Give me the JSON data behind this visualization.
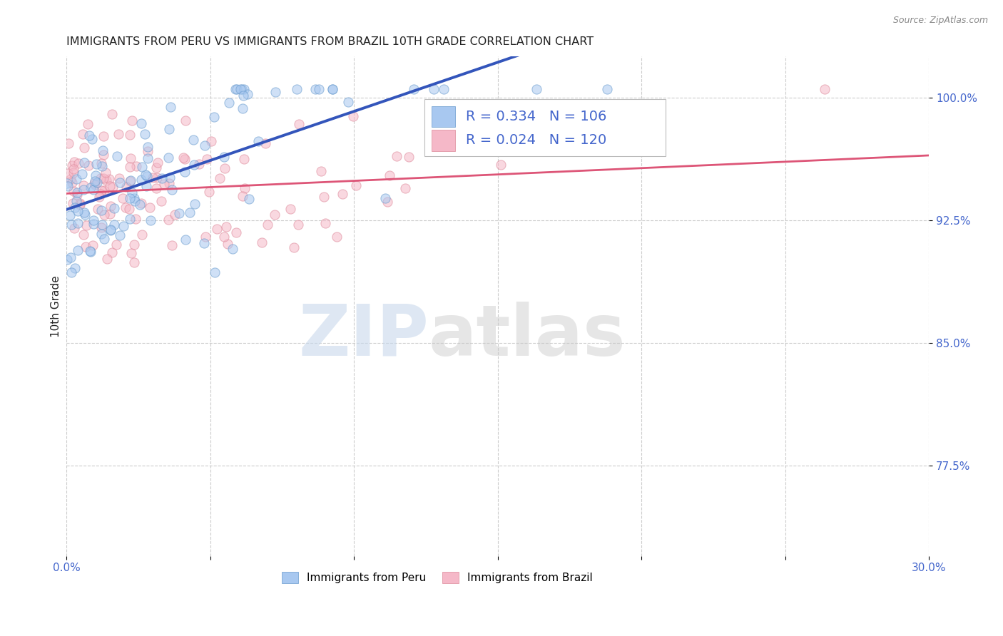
{
  "title": "IMMIGRANTS FROM PERU VS IMMIGRANTS FROM BRAZIL 10TH GRADE CORRELATION CHART",
  "source": "Source: ZipAtlas.com",
  "ylabel": "10th Grade",
  "ytick_values": [
    0.775,
    0.85,
    0.925,
    1.0
  ],
  "xlim": [
    0.0,
    0.3
  ],
  "ylim": [
    0.72,
    1.025
  ],
  "peru_R": 0.334,
  "peru_N": 106,
  "brazil_R": 0.024,
  "brazil_N": 120,
  "peru_color": "#a8c8f0",
  "peru_edge_color": "#6699cc",
  "brazil_color": "#f5b8c8",
  "brazil_edge_color": "#dd8899",
  "trendline_peru_color": "#3355bb",
  "trendline_brazil_color": "#dd5577",
  "legend_peru_label": "Immigrants from Peru",
  "legend_brazil_label": "Immigrants from Brazil",
  "watermark_zip": "ZIP",
  "watermark_atlas": "atlas",
  "background_color": "#ffffff",
  "grid_color": "#cccccc",
  "title_color": "#222222",
  "stat_color": "#4466cc",
  "source_color": "#888888",
  "marker_size": 90,
  "marker_alpha": 0.55
}
